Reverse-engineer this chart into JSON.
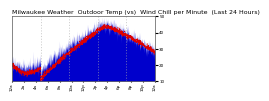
{
  "title": "Milwaukee Weather  Outdoor Temp (vs)  Wind Chill per Minute  (Last 24 Hours)",
  "bg_color": "#ffffff",
  "plot_bg_color": "#ffffff",
  "grid_color": "#aaaaaa",
  "temp_color": "#0000cc",
  "windchill_color": "#dd0000",
  "ylim": [
    10,
    50
  ],
  "yticks": [
    10,
    20,
    30,
    40,
    50
  ],
  "num_points": 1440,
  "num_vgrid": 5,
  "title_fontsize": 4.5,
  "tick_fontsize": 3.0
}
